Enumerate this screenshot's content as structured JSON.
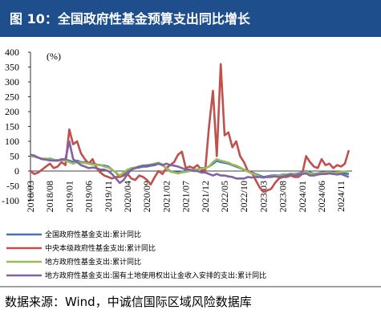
{
  "chart_data": {
    "type": "line",
    "title": "图 10：全国政府性基金预算支出同比增长",
    "y_label": "(%)",
    "source": "数据来源：Wind，中诚信国际区域风险数据库",
    "categories": [
      "2018/03",
      null,
      null,
      null,
      null,
      "2018/08",
      null,
      null,
      null,
      null,
      "2019/01",
      null,
      null,
      null,
      null,
      "2019/06",
      null,
      null,
      null,
      null,
      "2019/11",
      null,
      null,
      null,
      null,
      "2020/04",
      null,
      null,
      null,
      null,
      "2020/09",
      null,
      null,
      null,
      null,
      "2021/02",
      null,
      null,
      null,
      null,
      "2021/07",
      null,
      null,
      null,
      null,
      "2021/12",
      null,
      null,
      null,
      null,
      "2022/05",
      null,
      null,
      null,
      null,
      "2022/10",
      null,
      null,
      null,
      null,
      "2023/03",
      null,
      null,
      null,
      null,
      "2023/08",
      null,
      null,
      null,
      null,
      "2024/01",
      null,
      null,
      null,
      null,
      "2024/06",
      null,
      null,
      null,
      null,
      "2024/11",
      null,
      null
    ],
    "series": [
      {
        "name": "全国政府性基金支出:累计同比",
        "color": "#4472c4",
        "values": [
          55,
          50,
          45,
          40,
          40,
          42,
          38,
          35,
          40,
          38,
          35,
          30,
          35,
          30,
          30,
          28,
          25,
          22,
          20,
          18,
          15,
          5,
          -5,
          -20,
          -10,
          0,
          5,
          10,
          12,
          15,
          15,
          18,
          20,
          25,
          20,
          10,
          0,
          -5,
          -5,
          -3,
          0,
          0,
          5,
          5,
          10,
          10,
          15,
          25,
          35,
          30,
          28,
          25,
          20,
          15,
          10,
          5,
          0,
          -5,
          -10,
          -15,
          -20,
          -18,
          -15,
          -15,
          -15,
          -12,
          -12,
          -10,
          -10,
          -8,
          -5,
          0,
          -5,
          -10,
          -8,
          -5,
          -5,
          -3,
          -5,
          -5,
          -5,
          -8,
          -10
        ]
      },
      {
        "name": "中央本级政府性基金支出:累计同比",
        "color": "#c0504d",
        "values": [
          0,
          -10,
          -5,
          5,
          15,
          25,
          10,
          15,
          30,
          20,
          140,
          90,
          100,
          60,
          40,
          25,
          40,
          10,
          -5,
          -15,
          -20,
          -25,
          -20,
          -20,
          -15,
          -10,
          -25,
          -30,
          -15,
          -20,
          -30,
          -45,
          -20,
          0,
          -10,
          10,
          20,
          30,
          55,
          65,
          10,
          15,
          10,
          20,
          5,
          0,
          150,
          270,
          50,
          360,
          120,
          130,
          80,
          100,
          50,
          30,
          0,
          -5,
          -30,
          -55,
          -70,
          -65,
          -60,
          -40,
          -25,
          -20,
          -20,
          -15,
          -20,
          -20,
          -10,
          50,
          30,
          15,
          10,
          40,
          20,
          25,
          10,
          20,
          15,
          25,
          70
        ]
      },
      {
        "name": "地方政府性基金支出:累计同比",
        "color": "#9bbb59",
        "values": [
          50,
          48,
          45,
          42,
          42,
          40,
          38,
          37,
          38,
          35,
          30,
          25,
          30,
          28,
          27,
          25,
          22,
          20,
          20,
          15,
          12,
          5,
          -5,
          -15,
          -5,
          5,
          10,
          12,
          15,
          18,
          20,
          22,
          25,
          28,
          22,
          10,
          -2,
          -5,
          -8,
          -5,
          -3,
          0,
          3,
          5,
          8,
          10,
          15,
          30,
          40,
          35,
          32,
          28,
          22,
          18,
          12,
          5,
          -2,
          -8,
          -12,
          -18,
          -22,
          -20,
          -18,
          -17,
          -16,
          -14,
          -13,
          -12,
          -11,
          -10,
          -8,
          -2,
          -8,
          -12,
          -10,
          -6,
          -5,
          -5,
          -6,
          -4,
          -3,
          -2,
          0
        ]
      },
      {
        "name": "地方政府性基金支出:国有土地使用权出让金收入安排的支出:累计同比",
        "color": "#8064a2",
        "values": [
          55,
          52,
          45,
          40,
          38,
          36,
          35,
          35,
          38,
          40,
          100,
          40,
          30,
          20,
          15,
          10,
          12,
          10,
          5,
          5,
          0,
          -10,
          -25,
          -40,
          -30,
          -10,
          5,
          10,
          15,
          18,
          18,
          20,
          22,
          25,
          20,
          25,
          20,
          18,
          15,
          10,
          5,
          5,
          0,
          0,
          -5,
          -5,
          -10,
          -15,
          -10,
          -15,
          -15,
          -18,
          -20,
          -25,
          -25,
          -25,
          -20,
          -22,
          -20,
          -20,
          -22,
          -20,
          -20,
          -18,
          -20,
          -18,
          -15,
          -12,
          -15,
          -12,
          -10,
          -8,
          -15,
          -15,
          -12,
          -10,
          -10,
          -8,
          -10,
          -12,
          -10,
          -15,
          -20
        ]
      }
    ],
    "ylim": [
      -100,
      400
    ],
    "yticks": [
      -100,
      -50,
      0,
      50,
      100,
      150,
      200,
      250,
      300,
      350,
      400
    ]
  }
}
